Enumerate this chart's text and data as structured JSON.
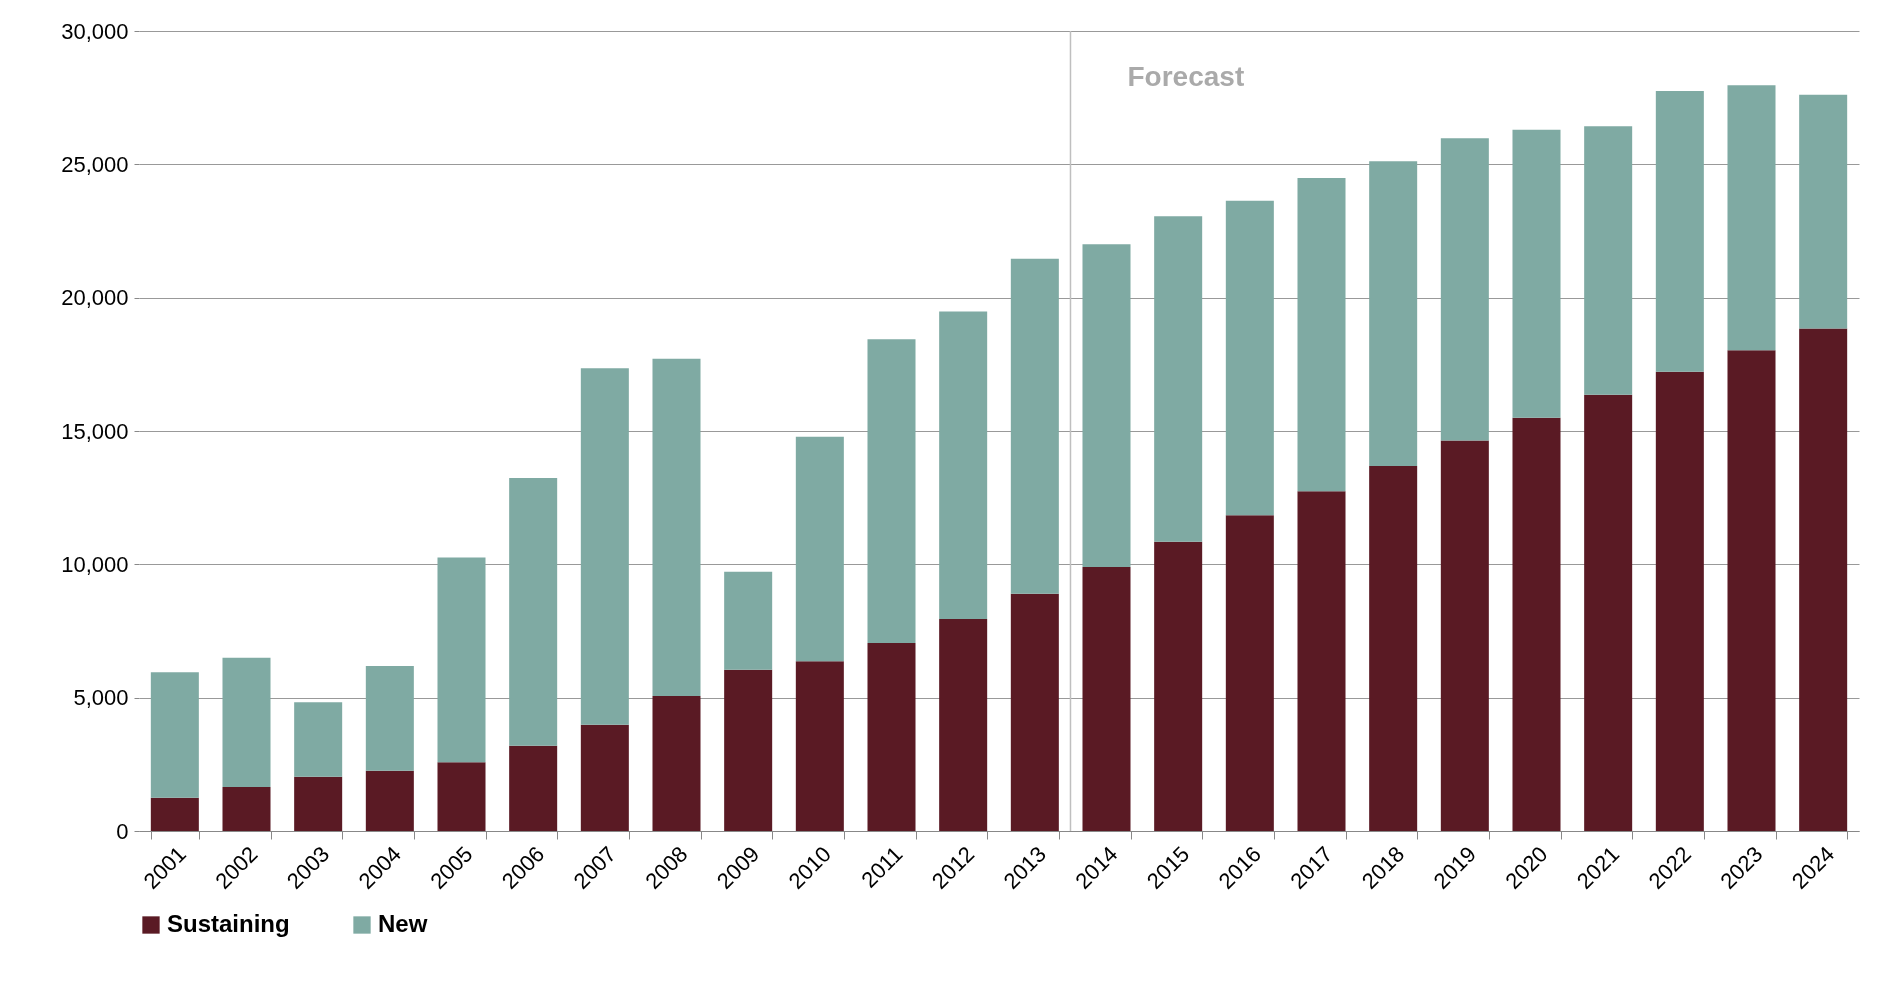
{
  "chart_data": {
    "type": "bar",
    "stacked": true,
    "categories": [
      "2001",
      "2002",
      "2003",
      "2004",
      "2005",
      "2006",
      "2007",
      "2008",
      "2009",
      "2010",
      "2011",
      "2012",
      "2013",
      "2014",
      "2015",
      "2016",
      "2017",
      "2018",
      "2019",
      "2020",
      "2021",
      "2022",
      "2023",
      "2024"
    ],
    "series": [
      {
        "name": "Sustaining",
        "color": "#5a1a24",
        "values": [
          1250,
          1650,
          2030,
          2260,
          2580,
          3200,
          3980,
          5060,
          6050,
          6370,
          7050,
          7950,
          8900,
          9900,
          10850,
          11840,
          12740,
          13690,
          14640,
          15500,
          16360,
          17220,
          18030,
          18840
        ]
      },
      {
        "name": "New",
        "color": "#7faaa3",
        "values": [
          4700,
          4850,
          2800,
          3930,
          7680,
          10040,
          13370,
          12650,
          3670,
          8410,
          11390,
          11530,
          12560,
          12100,
          12200,
          11790,
          11750,
          11430,
          11340,
          10800,
          10070,
          10530,
          9940,
          8770
        ]
      }
    ],
    "ylim": [
      0,
      30000
    ],
    "yticks": [
      0,
      {
        "value": 5000,
        "label": "5,000"
      },
      {
        "value": 10000,
        "label": "10,000"
      },
      {
        "value": 15000,
        "label": "15,000"
      },
      {
        "value": 20000,
        "label": "20,000"
      },
      {
        "value": 25000,
        "label": "25,000"
      },
      {
        "value": 30000,
        "label": "30,000"
      }
    ],
    "grid": "y",
    "legend": "bottom",
    "ref_lines": [
      {
        "axis": "x",
        "value": "2014",
        "label": "Forecast",
        "color": "#bfbfbf"
      }
    ]
  }
}
